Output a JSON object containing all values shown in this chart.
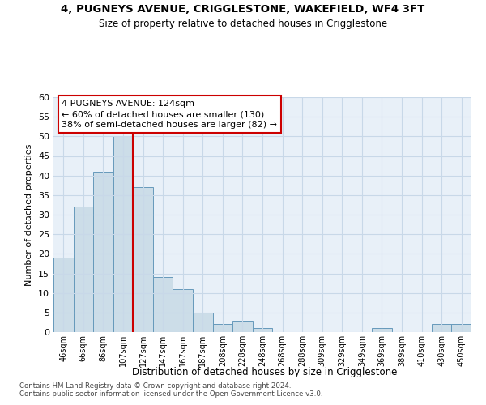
{
  "title1": "4, PUGNEYS AVENUE, CRIGGLESTONE, WAKEFIELD, WF4 3FT",
  "title2": "Size of property relative to detached houses in Crigglestone",
  "xlabel": "Distribution of detached houses by size in Crigglestone",
  "ylabel": "Number of detached properties",
  "bar_labels": [
    "46sqm",
    "66sqm",
    "86sqm",
    "107sqm",
    "127sqm",
    "147sqm",
    "167sqm",
    "187sqm",
    "208sqm",
    "228sqm",
    "248sqm",
    "268sqm",
    "288sqm",
    "309sqm",
    "329sqm",
    "349sqm",
    "369sqm",
    "389sqm",
    "410sqm",
    "430sqm",
    "450sqm"
  ],
  "bar_values": [
    19,
    32,
    41,
    50,
    37,
    14,
    11,
    5,
    2,
    3,
    1,
    0,
    0,
    0,
    0,
    0,
    1,
    0,
    0,
    2,
    2
  ],
  "bar_color": "#ccdde8",
  "bar_edge_color": "#6699bb",
  "vline_color": "#cc0000",
  "annotation_text": "4 PUGNEYS AVENUE: 124sqm\n← 60% of detached houses are smaller (130)\n38% of semi-detached houses are larger (82) →",
  "annotation_box_color": "#ffffff",
  "annotation_box_edge": "#cc0000",
  "ylim": [
    0,
    60
  ],
  "yticks": [
    0,
    5,
    10,
    15,
    20,
    25,
    30,
    35,
    40,
    45,
    50,
    55,
    60
  ],
  "footnote1": "Contains HM Land Registry data © Crown copyright and database right 2024.",
  "footnote2": "Contains public sector information licensed under the Open Government Licence v3.0.",
  "grid_color": "#c8d8e8",
  "background_color": "#e8f0f8"
}
